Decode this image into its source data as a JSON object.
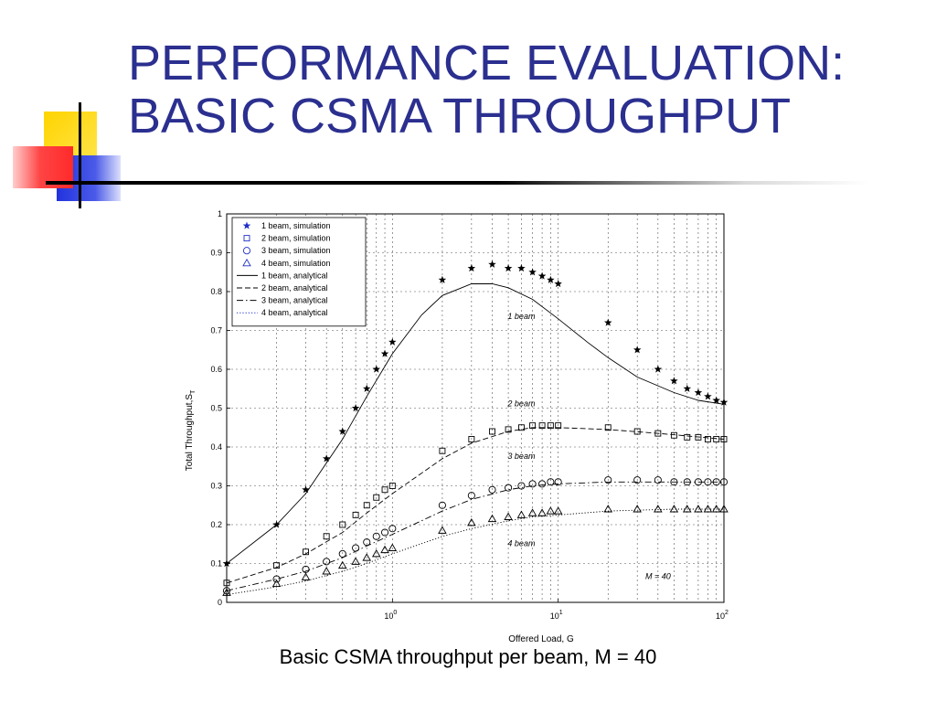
{
  "slide": {
    "title_line1": "PERFORMANCE EVALUATION:",
    "title_line2": "BASIC CSMA THROUGHPUT",
    "caption": "Basic CSMA throughput per beam, M = 40"
  },
  "colors": {
    "title": "#2b2f8f",
    "deco_yellow": "#ffd400",
    "deco_red": "#ff3333",
    "deco_blue": "#2233dd",
    "legend_marker": "#1f2fc8"
  },
  "chart_data": {
    "type": "scatter",
    "title": "",
    "xlabel": "Offered Load, G",
    "ylabel": "Total Throughput,S",
    "ylabel_sub": "T",
    "xscale": "log",
    "xlim": [
      0.1,
      100
    ],
    "ylim": [
      0,
      1
    ],
    "grid": true,
    "legend_position": "top-left",
    "yticks": [
      "0",
      "0.1",
      "0.2",
      "0.3",
      "0.4",
      "0.5",
      "0.6",
      "0.7",
      "0.8",
      "0.9",
      "1"
    ],
    "xticks": [
      {
        "base": "10",
        "exp": "0"
      },
      {
        "base": "10",
        "exp": "1"
      },
      {
        "base": "10",
        "exp": "2"
      }
    ],
    "legend": [
      {
        "label": "1 beam, simulation",
        "marker": "star"
      },
      {
        "label": "2 beam, simulation",
        "marker": "square"
      },
      {
        "label": "3 beam, simulation",
        "marker": "circle"
      },
      {
        "label": "4 beam, simulation",
        "marker": "triangle"
      },
      {
        "label": "1 beam, analytical",
        "line": "solid"
      },
      {
        "label": "2 beam, analytical",
        "line": "dashed"
      },
      {
        "label": "3 beam, analytical",
        "line": "dashdot"
      },
      {
        "label": "4 beam, analytical",
        "line": "dotted"
      }
    ],
    "annotations": [
      {
        "text": "1 beam",
        "x": 6,
        "y": 0.73
      },
      {
        "text": "2 beam",
        "x": 6,
        "y": 0.505
      },
      {
        "text": "3 beam",
        "x": 6,
        "y": 0.37
      },
      {
        "text": "4 beam",
        "x": 6,
        "y": 0.145
      },
      {
        "text": "M = 40",
        "x": 40,
        "y": 0.06
      }
    ],
    "series": [
      {
        "name": "1 beam, simulation",
        "marker": "star",
        "points": [
          [
            0.1,
            0.1
          ],
          [
            0.2,
            0.2
          ],
          [
            0.3,
            0.29
          ],
          [
            0.4,
            0.37
          ],
          [
            0.5,
            0.44
          ],
          [
            0.6,
            0.5
          ],
          [
            0.7,
            0.55
          ],
          [
            0.8,
            0.6
          ],
          [
            0.9,
            0.64
          ],
          [
            1,
            0.67
          ],
          [
            2,
            0.83
          ],
          [
            3,
            0.86
          ],
          [
            4,
            0.87
          ],
          [
            5,
            0.86
          ],
          [
            6,
            0.86
          ],
          [
            7,
            0.85
          ],
          [
            8,
            0.84
          ],
          [
            9,
            0.83
          ],
          [
            10,
            0.82
          ],
          [
            20,
            0.72
          ],
          [
            30,
            0.65
          ],
          [
            40,
            0.6
          ],
          [
            50,
            0.57
          ],
          [
            60,
            0.55
          ],
          [
            70,
            0.54
          ],
          [
            80,
            0.53
          ],
          [
            90,
            0.52
          ],
          [
            100,
            0.515
          ]
        ]
      },
      {
        "name": "2 beam, simulation",
        "marker": "square",
        "points": [
          [
            0.1,
            0.05
          ],
          [
            0.2,
            0.095
          ],
          [
            0.3,
            0.13
          ],
          [
            0.4,
            0.17
          ],
          [
            0.5,
            0.2
          ],
          [
            0.6,
            0.225
          ],
          [
            0.7,
            0.25
          ],
          [
            0.8,
            0.27
          ],
          [
            0.9,
            0.29
          ],
          [
            1,
            0.3
          ],
          [
            2,
            0.39
          ],
          [
            3,
            0.42
          ],
          [
            4,
            0.44
          ],
          [
            5,
            0.445
          ],
          [
            6,
            0.45
          ],
          [
            7,
            0.455
          ],
          [
            8,
            0.455
          ],
          [
            9,
            0.455
          ],
          [
            10,
            0.455
          ],
          [
            20,
            0.45
          ],
          [
            30,
            0.44
          ],
          [
            40,
            0.435
          ],
          [
            50,
            0.43
          ],
          [
            60,
            0.425
          ],
          [
            70,
            0.425
          ],
          [
            80,
            0.42
          ],
          [
            90,
            0.42
          ],
          [
            100,
            0.42
          ]
        ]
      },
      {
        "name": "3 beam, simulation",
        "marker": "circle",
        "points": [
          [
            0.1,
            0.03
          ],
          [
            0.2,
            0.06
          ],
          [
            0.3,
            0.085
          ],
          [
            0.4,
            0.105
          ],
          [
            0.5,
            0.125
          ],
          [
            0.6,
            0.14
          ],
          [
            0.7,
            0.155
          ],
          [
            0.8,
            0.17
          ],
          [
            0.9,
            0.18
          ],
          [
            1,
            0.19
          ],
          [
            2,
            0.25
          ],
          [
            3,
            0.275
          ],
          [
            4,
            0.29
          ],
          [
            5,
            0.295
          ],
          [
            6,
            0.3
          ],
          [
            7,
            0.305
          ],
          [
            8,
            0.305
          ],
          [
            9,
            0.31
          ],
          [
            10,
            0.31
          ],
          [
            20,
            0.315
          ],
          [
            30,
            0.315
          ],
          [
            40,
            0.315
          ],
          [
            50,
            0.31
          ],
          [
            60,
            0.31
          ],
          [
            70,
            0.31
          ],
          [
            80,
            0.31
          ],
          [
            90,
            0.31
          ],
          [
            100,
            0.31
          ]
        ]
      },
      {
        "name": "4 beam, simulation",
        "marker": "triangle",
        "points": [
          [
            0.1,
            0.025
          ],
          [
            0.2,
            0.048
          ],
          [
            0.3,
            0.065
          ],
          [
            0.4,
            0.08
          ],
          [
            0.5,
            0.095
          ],
          [
            0.6,
            0.105
          ],
          [
            0.7,
            0.115
          ],
          [
            0.8,
            0.125
          ],
          [
            0.9,
            0.135
          ],
          [
            1,
            0.14
          ],
          [
            2,
            0.185
          ],
          [
            3,
            0.205
          ],
          [
            4,
            0.215
          ],
          [
            5,
            0.22
          ],
          [
            6,
            0.225
          ],
          [
            7,
            0.23
          ],
          [
            8,
            0.23
          ],
          [
            9,
            0.235
          ],
          [
            10,
            0.235
          ],
          [
            20,
            0.24
          ],
          [
            30,
            0.24
          ],
          [
            40,
            0.24
          ],
          [
            50,
            0.24
          ],
          [
            60,
            0.24
          ],
          [
            70,
            0.24
          ],
          [
            80,
            0.24
          ],
          [
            90,
            0.24
          ],
          [
            100,
            0.24
          ]
        ]
      },
      {
        "name": "1 beam, analytical",
        "line": "solid",
        "points": [
          [
            0.1,
            0.1
          ],
          [
            0.2,
            0.2
          ],
          [
            0.3,
            0.28
          ],
          [
            0.5,
            0.42
          ],
          [
            0.7,
            0.53
          ],
          [
            1,
            0.64
          ],
          [
            1.5,
            0.74
          ],
          [
            2,
            0.79
          ],
          [
            3,
            0.82
          ],
          [
            4,
            0.82
          ],
          [
            5,
            0.81
          ],
          [
            7,
            0.78
          ],
          [
            10,
            0.73
          ],
          [
            15,
            0.67
          ],
          [
            20,
            0.63
          ],
          [
            30,
            0.58
          ],
          [
            50,
            0.54
          ],
          [
            70,
            0.52
          ],
          [
            100,
            0.51
          ]
        ]
      },
      {
        "name": "2 beam, analytical",
        "line": "dashed",
        "points": [
          [
            0.1,
            0.05
          ],
          [
            0.2,
            0.09
          ],
          [
            0.3,
            0.125
          ],
          [
            0.5,
            0.18
          ],
          [
            0.7,
            0.23
          ],
          [
            1,
            0.28
          ],
          [
            2,
            0.37
          ],
          [
            3,
            0.41
          ],
          [
            5,
            0.44
          ],
          [
            7,
            0.45
          ],
          [
            10,
            0.45
          ],
          [
            20,
            0.445
          ],
          [
            40,
            0.435
          ],
          [
            100,
            0.42
          ]
        ]
      },
      {
        "name": "3 beam, analytical",
        "line": "dashdot",
        "points": [
          [
            0.1,
            0.03
          ],
          [
            0.2,
            0.06
          ],
          [
            0.3,
            0.08
          ],
          [
            0.5,
            0.115
          ],
          [
            0.7,
            0.145
          ],
          [
            1,
            0.175
          ],
          [
            2,
            0.235
          ],
          [
            3,
            0.265
          ],
          [
            5,
            0.29
          ],
          [
            7,
            0.3
          ],
          [
            10,
            0.305
          ],
          [
            20,
            0.31
          ],
          [
            50,
            0.31
          ],
          [
            100,
            0.31
          ]
        ]
      },
      {
        "name": "4 beam, analytical",
        "line": "dotted",
        "points": [
          [
            0.1,
            0.02
          ],
          [
            0.2,
            0.04
          ],
          [
            0.3,
            0.055
          ],
          [
            0.5,
            0.08
          ],
          [
            0.7,
            0.1
          ],
          [
            1,
            0.125
          ],
          [
            2,
            0.17
          ],
          [
            3,
            0.19
          ],
          [
            5,
            0.21
          ],
          [
            7,
            0.22
          ],
          [
            10,
            0.225
          ],
          [
            20,
            0.235
          ],
          [
            50,
            0.24
          ],
          [
            100,
            0.24
          ]
        ]
      }
    ]
  }
}
